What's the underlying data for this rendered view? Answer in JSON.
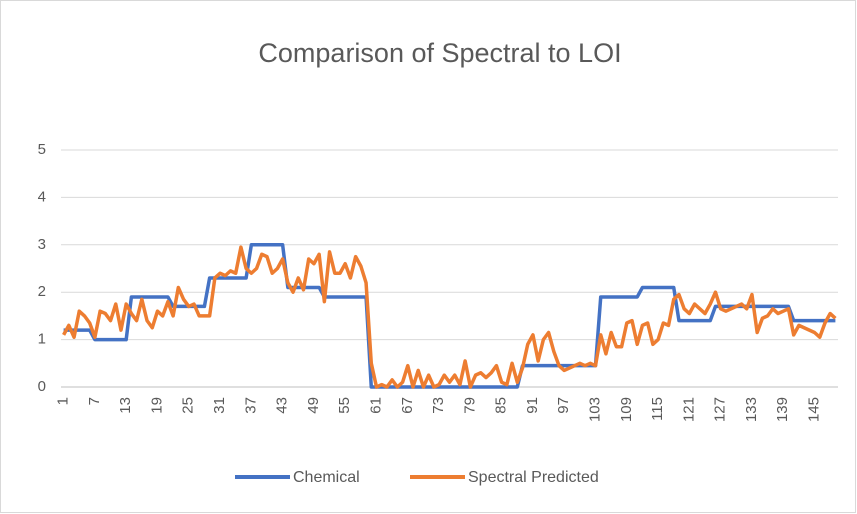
{
  "chart_data": {
    "type": "line",
    "title": "Comparison of Spectral to LOI",
    "categories": [
      "1",
      null,
      null,
      null,
      null,
      null,
      "7",
      null,
      null,
      null,
      null,
      null,
      "13",
      null,
      null,
      null,
      null,
      null,
      "19",
      null,
      null,
      null,
      null,
      null,
      "25",
      null,
      null,
      null,
      null,
      null,
      "31",
      null,
      null,
      null,
      null,
      null,
      "37",
      null,
      null,
      null,
      null,
      null,
      "43",
      null,
      null,
      null,
      null,
      null,
      "49",
      null,
      null,
      null,
      null,
      null,
      "55",
      null,
      null,
      null,
      null,
      null,
      "61",
      null,
      null,
      null,
      null,
      null,
      "67",
      null,
      null,
      null,
      null,
      null,
      "73",
      null,
      null,
      null,
      null,
      null,
      "79",
      null,
      null,
      null,
      null,
      null,
      "85",
      null,
      null,
      null,
      null,
      null,
      "91",
      null,
      null,
      null,
      null,
      null,
      "97",
      null,
      null,
      null,
      null,
      null,
      "103",
      null,
      null,
      null,
      null,
      null,
      "109",
      null,
      null,
      null,
      null,
      null,
      "115",
      null,
      null,
      null,
      null,
      null,
      "121",
      null,
      null,
      null,
      null,
      null,
      "127",
      null,
      null,
      null,
      null,
      null,
      "133",
      null,
      null,
      null,
      null,
      null,
      "139",
      null,
      null,
      null,
      null,
      null,
      "145",
      null,
      null,
      null,
      null
    ],
    "series": [
      {
        "name": "Chemical",
        "color": "#4472c4",
        "values": [
          1.2,
          1.2,
          1.2,
          1.2,
          1.2,
          1.2,
          1.0,
          1.0,
          1.0,
          1.0,
          1.0,
          1.0,
          1.0,
          1.9,
          1.9,
          1.9,
          1.9,
          1.9,
          1.9,
          1.9,
          1.9,
          1.7,
          1.7,
          1.7,
          1.7,
          1.7,
          1.7,
          1.7,
          2.3,
          2.3,
          2.3,
          2.3,
          2.3,
          2.3,
          2.3,
          2.3,
          3.0,
          3.0,
          3.0,
          3.0,
          3.0,
          3.0,
          3.0,
          2.1,
          2.1,
          2.1,
          2.1,
          2.1,
          2.1,
          2.1,
          1.9,
          1.9,
          1.9,
          1.9,
          1.9,
          1.9,
          1.9,
          1.9,
          1.9,
          0,
          0,
          0,
          0,
          0,
          0,
          0,
          0,
          0,
          0,
          0,
          0,
          0,
          0,
          0,
          0,
          0,
          0,
          0,
          0,
          0,
          0,
          0,
          0,
          0,
          0,
          0,
          0,
          0,
          0.45,
          0.45,
          0.45,
          0.45,
          0.45,
          0.45,
          0.45,
          0.45,
          0.45,
          0.45,
          0.45,
          0.45,
          0.45,
          0.45,
          0.45,
          1.9,
          1.9,
          1.9,
          1.9,
          1.9,
          1.9,
          1.9,
          1.9,
          2.1,
          2.1,
          2.1,
          2.1,
          2.1,
          2.1,
          2.1,
          1.4,
          1.4,
          1.4,
          1.4,
          1.4,
          1.4,
          1.4,
          1.7,
          1.7,
          1.7,
          1.7,
          1.7,
          1.7,
          1.7,
          1.7,
          1.7,
          1.7,
          1.7,
          1.7,
          1.7,
          1.7,
          1.7,
          1.4,
          1.4,
          1.4,
          1.4,
          1.4,
          1.4,
          1.4,
          1.4,
          1.4
        ]
      },
      {
        "name": "Spectral Predicted",
        "color": "#ed7d31",
        "values": [
          1.1,
          1.3,
          1.05,
          1.6,
          1.5,
          1.35,
          1.05,
          1.6,
          1.55,
          1.4,
          1.75,
          1.2,
          1.75,
          1.55,
          1.4,
          1.85,
          1.4,
          1.25,
          1.6,
          1.5,
          1.8,
          1.5,
          2.1,
          1.85,
          1.7,
          1.75,
          1.5,
          1.5,
          1.5,
          2.3,
          2.4,
          2.35,
          2.45,
          2.4,
          2.95,
          2.5,
          2.4,
          2.5,
          2.8,
          2.75,
          2.4,
          2.5,
          2.7,
          2.2,
          2.0,
          2.3,
          2.05,
          2.7,
          2.6,
          2.8,
          1.8,
          2.85,
          2.4,
          2.4,
          2.6,
          2.3,
          2.75,
          2.55,
          2.2,
          0.5,
          0,
          0.05,
          0,
          0.15,
          0,
          0.1,
          0.45,
          0,
          0.35,
          0,
          0.25,
          0,
          0.05,
          0.25,
          0.1,
          0.25,
          0.05,
          0.55,
          0,
          0.25,
          0.3,
          0.2,
          0.3,
          0.45,
          0.1,
          0.05,
          0.5,
          0.1,
          0.4,
          0.9,
          1.1,
          0.55,
          1.0,
          1.15,
          0.75,
          0.45,
          0.35,
          0.4,
          0.45,
          0.5,
          0.45,
          0.5,
          0.45,
          1.1,
          0.7,
          1.15,
          0.85,
          0.85,
          1.35,
          1.4,
          0.9,
          1.3,
          1.35,
          0.9,
          1.0,
          1.35,
          1.3,
          1.85,
          1.95,
          1.65,
          1.55,
          1.75,
          1.65,
          1.55,
          1.75,
          2.0,
          1.65,
          1.6,
          1.65,
          1.7,
          1.75,
          1.65,
          1.95,
          1.15,
          1.45,
          1.5,
          1.65,
          1.55,
          1.6,
          1.65,
          1.1,
          1.3,
          1.25,
          1.2,
          1.15,
          1.05,
          1.35,
          1.55,
          1.45
        ]
      }
    ],
    "ylim": [
      0,
      5
    ],
    "yticks": [
      0,
      1,
      2,
      3,
      4,
      5
    ],
    "grid": true,
    "legend": "bottom"
  }
}
